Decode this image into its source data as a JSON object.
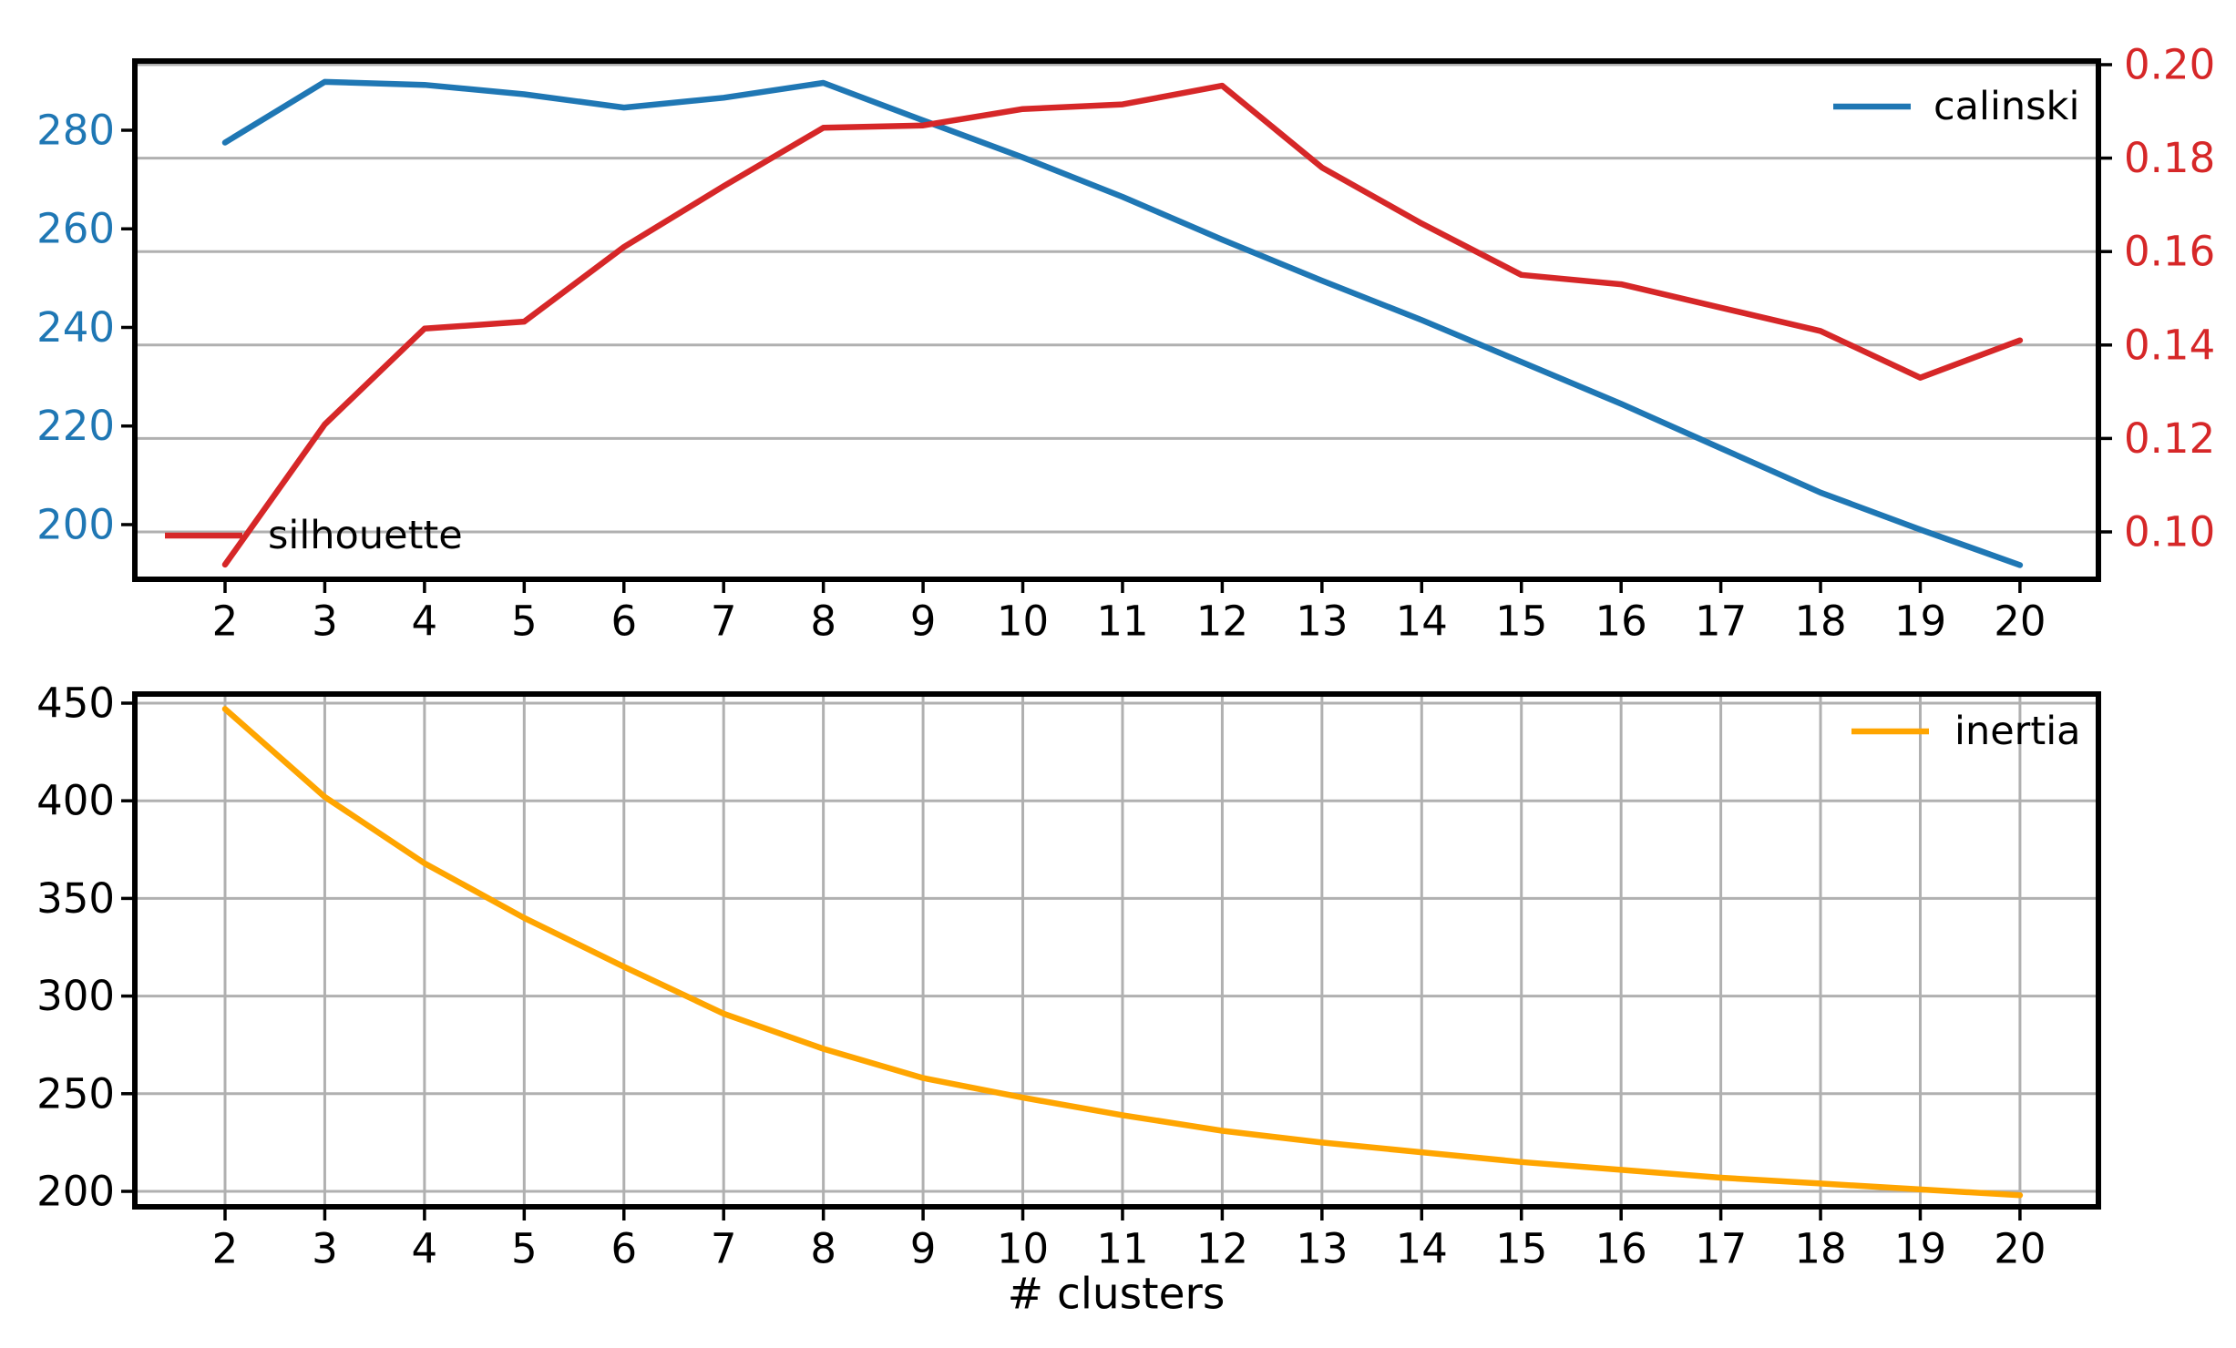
{
  "figure": {
    "background": "#ffffff",
    "grid_color": "#b0b0b0",
    "spine_color": "#000000",
    "tick_color": "#000000"
  },
  "chart_data": [
    {
      "type": "line",
      "title": "",
      "x": [
        2,
        3,
        4,
        5,
        6,
        7,
        8,
        9,
        10,
        11,
        12,
        13,
        14,
        15,
        16,
        17,
        18,
        19,
        20
      ],
      "series": [
        {
          "name": "calinski",
          "color": "#1f77b4",
          "axis": "left",
          "values": [
            277.5,
            289.8,
            289.2,
            287.3,
            284.6,
            286.6,
            289.6,
            282.0,
            274.5,
            266.5,
            257.8,
            249.5,
            241.5,
            233.0,
            224.5,
            215.5,
            206.5,
            199.0,
            191.8
          ]
        },
        {
          "name": "silhouette",
          "color": "#d62728",
          "axis": "right",
          "values": [
            0.093,
            0.123,
            0.1435,
            0.145,
            0.161,
            0.174,
            0.1865,
            0.187,
            0.1905,
            0.1915,
            0.1955,
            0.178,
            0.166,
            0.155,
            0.153,
            0.148,
            0.143,
            0.133,
            0.141
          ]
        }
      ],
      "left_axis": {
        "ticks": [
          200,
          220,
          240,
          260,
          280
        ],
        "labels": [
          "200",
          "220",
          "240",
          "260",
          "280"
        ],
        "range": [
          188.91,
          294.04
        ],
        "label_color": "#1f77b4",
        "gridlines": false
      },
      "right_axis": {
        "ticks": [
          0.1,
          0.12,
          0.14,
          0.16,
          0.18,
          0.2
        ],
        "labels": [
          "0.10",
          "0.12",
          "0.14",
          "0.16",
          "0.18",
          "0.20"
        ],
        "range": [
          0.08986,
          0.20078
        ],
        "label_color": "#d62728",
        "gridlines": true
      },
      "x_axis": {
        "ticks": [
          2,
          3,
          4,
          5,
          6,
          7,
          8,
          9,
          10,
          11,
          12,
          13,
          14,
          15,
          16,
          17,
          18,
          19,
          20
        ],
        "labels": [
          "2",
          "3",
          "4",
          "5",
          "6",
          "7",
          "8",
          "9",
          "10",
          "11",
          "12",
          "13",
          "14",
          "15",
          "16",
          "17",
          "18",
          "19",
          "20"
        ],
        "range": [
          1.0954,
          20.7866
        ],
        "gridlines": false
      },
      "xlabel": "",
      "legend_labels": {
        "calinski": "calinski",
        "silhouette": "silhouette"
      },
      "legend_positions": [
        "upper-right",
        "lower-left"
      ]
    },
    {
      "type": "line",
      "title": "",
      "x": [
        2,
        3,
        4,
        5,
        6,
        7,
        8,
        9,
        10,
        11,
        12,
        13,
        14,
        15,
        16,
        17,
        18,
        19,
        20
      ],
      "series": [
        {
          "name": "inertia",
          "color": "#ffa500",
          "axis": "left",
          "values": [
            447,
            402,
            368,
            340,
            315,
            291,
            273,
            258,
            248,
            239,
            231,
            225,
            220,
            215,
            211,
            207,
            204,
            201,
            198
          ]
        }
      ],
      "left_axis": {
        "ticks": [
          200,
          250,
          300,
          350,
          400,
          450
        ],
        "labels": [
          "200",
          "250",
          "300",
          "350",
          "400",
          "450"
        ],
        "range": [
          192.07,
          454.66
        ],
        "label_color": "#000000",
        "gridlines": true
      },
      "x_axis": {
        "ticks": [
          2,
          3,
          4,
          5,
          6,
          7,
          8,
          9,
          10,
          11,
          12,
          13,
          14,
          15,
          16,
          17,
          18,
          19,
          20
        ],
        "labels": [
          "2",
          "3",
          "4",
          "5",
          "6",
          "7",
          "8",
          "9",
          "10",
          "11",
          "12",
          "13",
          "14",
          "15",
          "16",
          "17",
          "18",
          "19",
          "20"
        ],
        "range": [
          1.0954,
          20.7866
        ],
        "gridlines": true
      },
      "xlabel": "# clusters",
      "legend_labels": {
        "inertia": "inertia"
      },
      "legend_positions": [
        "upper-right"
      ]
    }
  ]
}
